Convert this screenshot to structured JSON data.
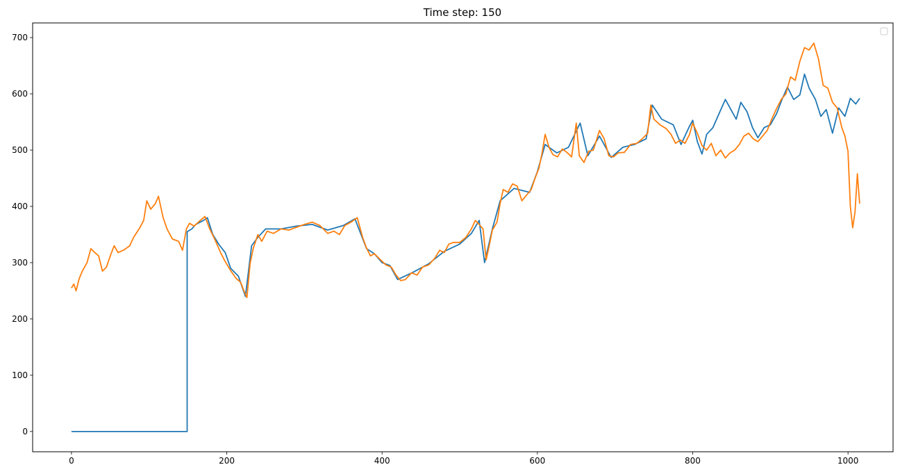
{
  "chart_data": {
    "type": "line",
    "title": "Time step: 150",
    "xlabel": "",
    "ylabel": "",
    "xlim": [
      -50,
      1058
    ],
    "ylim": [
      -36,
      726
    ],
    "x_ticks": [
      0,
      200,
      400,
      600,
      800,
      1000
    ],
    "y_ticks": [
      0,
      100,
      200,
      300,
      400,
      500,
      600,
      700
    ],
    "grid": false,
    "legend": {
      "placement": "top-right",
      "entries": []
    },
    "series": [
      {
        "color": "#1f77b4",
        "points": [
          [
            0,
            0
          ],
          [
            149,
            0
          ],
          [
            149,
            355
          ],
          [
            155,
            360
          ],
          [
            160,
            368
          ],
          [
            170,
            375
          ],
          [
            175,
            380
          ],
          [
            182,
            350
          ],
          [
            190,
            332
          ],
          [
            198,
            318
          ],
          [
            205,
            290
          ],
          [
            215,
            276
          ],
          [
            224,
            240
          ],
          [
            232,
            330
          ],
          [
            240,
            345
          ],
          [
            250,
            360
          ],
          [
            270,
            360
          ],
          [
            290,
            365
          ],
          [
            310,
            368
          ],
          [
            330,
            358
          ],
          [
            350,
            366
          ],
          [
            365,
            378
          ],
          [
            380,
            325
          ],
          [
            390,
            316
          ],
          [
            400,
            300
          ],
          [
            410,
            295
          ],
          [
            420,
            270
          ],
          [
            440,
            283
          ],
          [
            460,
            298
          ],
          [
            480,
            320
          ],
          [
            500,
            333
          ],
          [
            515,
            352
          ],
          [
            525,
            375
          ],
          [
            532,
            300
          ],
          [
            542,
            360
          ],
          [
            552,
            410
          ],
          [
            570,
            432
          ],
          [
            590,
            425
          ],
          [
            600,
            462
          ],
          [
            610,
            510
          ],
          [
            625,
            495
          ],
          [
            640,
            505
          ],
          [
            655,
            548
          ],
          [
            665,
            490
          ],
          [
            680,
            525
          ],
          [
            695,
            487
          ],
          [
            710,
            505
          ],
          [
            725,
            510
          ],
          [
            740,
            520
          ],
          [
            748,
            580
          ],
          [
            760,
            555
          ],
          [
            775,
            545
          ],
          [
            785,
            510
          ],
          [
            795,
            540
          ],
          [
            800,
            553
          ],
          [
            806,
            515
          ],
          [
            812,
            493
          ],
          [
            818,
            528
          ],
          [
            826,
            540
          ],
          [
            835,
            568
          ],
          [
            842,
            590
          ],
          [
            850,
            570
          ],
          [
            856,
            555
          ],
          [
            862,
            585
          ],
          [
            870,
            568
          ],
          [
            877,
            540
          ],
          [
            884,
            522
          ],
          [
            892,
            540
          ],
          [
            900,
            545
          ],
          [
            908,
            565
          ],
          [
            915,
            590
          ],
          [
            922,
            612
          ],
          [
            930,
            590
          ],
          [
            938,
            598
          ],
          [
            944,
            635
          ],
          [
            950,
            610
          ],
          [
            958,
            590
          ],
          [
            965,
            560
          ],
          [
            972,
            572
          ],
          [
            980,
            530
          ],
          [
            988,
            575
          ],
          [
            996,
            560
          ],
          [
            1003,
            592
          ],
          [
            1010,
            582
          ],
          [
            1015,
            592
          ]
        ]
      },
      {
        "color": "#ff7f0e",
        "points": [
          [
            0,
            255
          ],
          [
            3,
            262
          ],
          [
            6,
            250
          ],
          [
            10,
            272
          ],
          [
            14,
            285
          ],
          [
            20,
            300
          ],
          [
            25,
            325
          ],
          [
            30,
            318
          ],
          [
            35,
            312
          ],
          [
            40,
            285
          ],
          [
            45,
            292
          ],
          [
            50,
            312
          ],
          [
            55,
            330
          ],
          [
            60,
            318
          ],
          [
            68,
            323
          ],
          [
            75,
            330
          ],
          [
            80,
            345
          ],
          [
            88,
            362
          ],
          [
            93,
            375
          ],
          [
            97,
            410
          ],
          [
            102,
            395
          ],
          [
            108,
            405
          ],
          [
            112,
            418
          ],
          [
            118,
            380
          ],
          [
            123,
            360
          ],
          [
            130,
            342
          ],
          [
            138,
            338
          ],
          [
            143,
            322
          ],
          [
            148,
            360
          ],
          [
            152,
            370
          ],
          [
            158,
            365
          ],
          [
            165,
            374
          ],
          [
            172,
            382
          ],
          [
            178,
            360
          ],
          [
            185,
            340
          ],
          [
            192,
            318
          ],
          [
            198,
            302
          ],
          [
            205,
            286
          ],
          [
            212,
            272
          ],
          [
            218,
            265
          ],
          [
            222,
            250
          ],
          [
            226,
            238
          ],
          [
            230,
            298
          ],
          [
            234,
            325
          ],
          [
            240,
            350
          ],
          [
            245,
            338
          ],
          [
            252,
            356
          ],
          [
            260,
            352
          ],
          [
            270,
            360
          ],
          [
            280,
            358
          ],
          [
            290,
            363
          ],
          [
            300,
            368
          ],
          [
            310,
            372
          ],
          [
            320,
            366
          ],
          [
            330,
            352
          ],
          [
            338,
            356
          ],
          [
            345,
            350
          ],
          [
            352,
            366
          ],
          [
            360,
            372
          ],
          [
            368,
            380
          ],
          [
            375,
            345
          ],
          [
            380,
            326
          ],
          [
            385,
            312
          ],
          [
            390,
            316
          ],
          [
            398,
            305
          ],
          [
            405,
            296
          ],
          [
            412,
            292
          ],
          [
            418,
            278
          ],
          [
            424,
            268
          ],
          [
            430,
            270
          ],
          [
            438,
            282
          ],
          [
            445,
            278
          ],
          [
            452,
            292
          ],
          [
            460,
            296
          ],
          [
            468,
            308
          ],
          [
            474,
            322
          ],
          [
            480,
            318
          ],
          [
            486,
            333
          ],
          [
            492,
            336
          ],
          [
            500,
            336
          ],
          [
            508,
            345
          ],
          [
            515,
            360
          ],
          [
            520,
            375
          ],
          [
            525,
            368
          ],
          [
            530,
            360
          ],
          [
            534,
            305
          ],
          [
            538,
            330
          ],
          [
            542,
            358
          ],
          [
            548,
            372
          ],
          [
            552,
            405
          ],
          [
            556,
            430
          ],
          [
            562,
            425
          ],
          [
            568,
            440
          ],
          [
            574,
            436
          ],
          [
            580,
            410
          ],
          [
            586,
            420
          ],
          [
            592,
            430
          ],
          [
            597,
            450
          ],
          [
            602,
            468
          ],
          [
            606,
            495
          ],
          [
            610,
            528
          ],
          [
            615,
            505
          ],
          [
            620,
            492
          ],
          [
            626,
            488
          ],
          [
            632,
            502
          ],
          [
            638,
            496
          ],
          [
            644,
            488
          ],
          [
            650,
            548
          ],
          [
            654,
            490
          ],
          [
            660,
            478
          ],
          [
            666,
            498
          ],
          [
            672,
            500
          ],
          [
            680,
            535
          ],
          [
            686,
            520
          ],
          [
            692,
            490
          ],
          [
            698,
            488
          ],
          [
            704,
            495
          ],
          [
            712,
            496
          ],
          [
            720,
            510
          ],
          [
            728,
            512
          ],
          [
            735,
            520
          ],
          [
            742,
            530
          ],
          [
            746,
            580
          ],
          [
            750,
            555
          ],
          [
            758,
            545
          ],
          [
            766,
            538
          ],
          [
            772,
            528
          ],
          [
            778,
            512
          ],
          [
            784,
            518
          ],
          [
            790,
            512
          ],
          [
            796,
            528
          ],
          [
            800,
            548
          ],
          [
            806,
            530
          ],
          [
            812,
            508
          ],
          [
            818,
            500
          ],
          [
            824,
            512
          ],
          [
            830,
            490
          ],
          [
            836,
            500
          ],
          [
            842,
            486
          ],
          [
            848,
            495
          ],
          [
            854,
            500
          ],
          [
            860,
            510
          ],
          [
            866,
            525
          ],
          [
            872,
            530
          ],
          [
            878,
            520
          ],
          [
            884,
            515
          ],
          [
            890,
            525
          ],
          [
            896,
            535
          ],
          [
            902,
            556
          ],
          [
            908,
            574
          ],
          [
            914,
            590
          ],
          [
            920,
            600
          ],
          [
            926,
            630
          ],
          [
            932,
            624
          ],
          [
            938,
            658
          ],
          [
            944,
            682
          ],
          [
            950,
            678
          ],
          [
            956,
            690
          ],
          [
            962,
            662
          ],
          [
            968,
            615
          ],
          [
            974,
            610
          ],
          [
            980,
            585
          ],
          [
            986,
            575
          ],
          [
            992,
            540
          ],
          [
            996,
            525
          ],
          [
            1000,
            498
          ],
          [
            1003,
            400
          ],
          [
            1006,
            362
          ],
          [
            1009,
            390
          ],
          [
            1012,
            458
          ],
          [
            1015,
            405
          ]
        ]
      }
    ]
  }
}
